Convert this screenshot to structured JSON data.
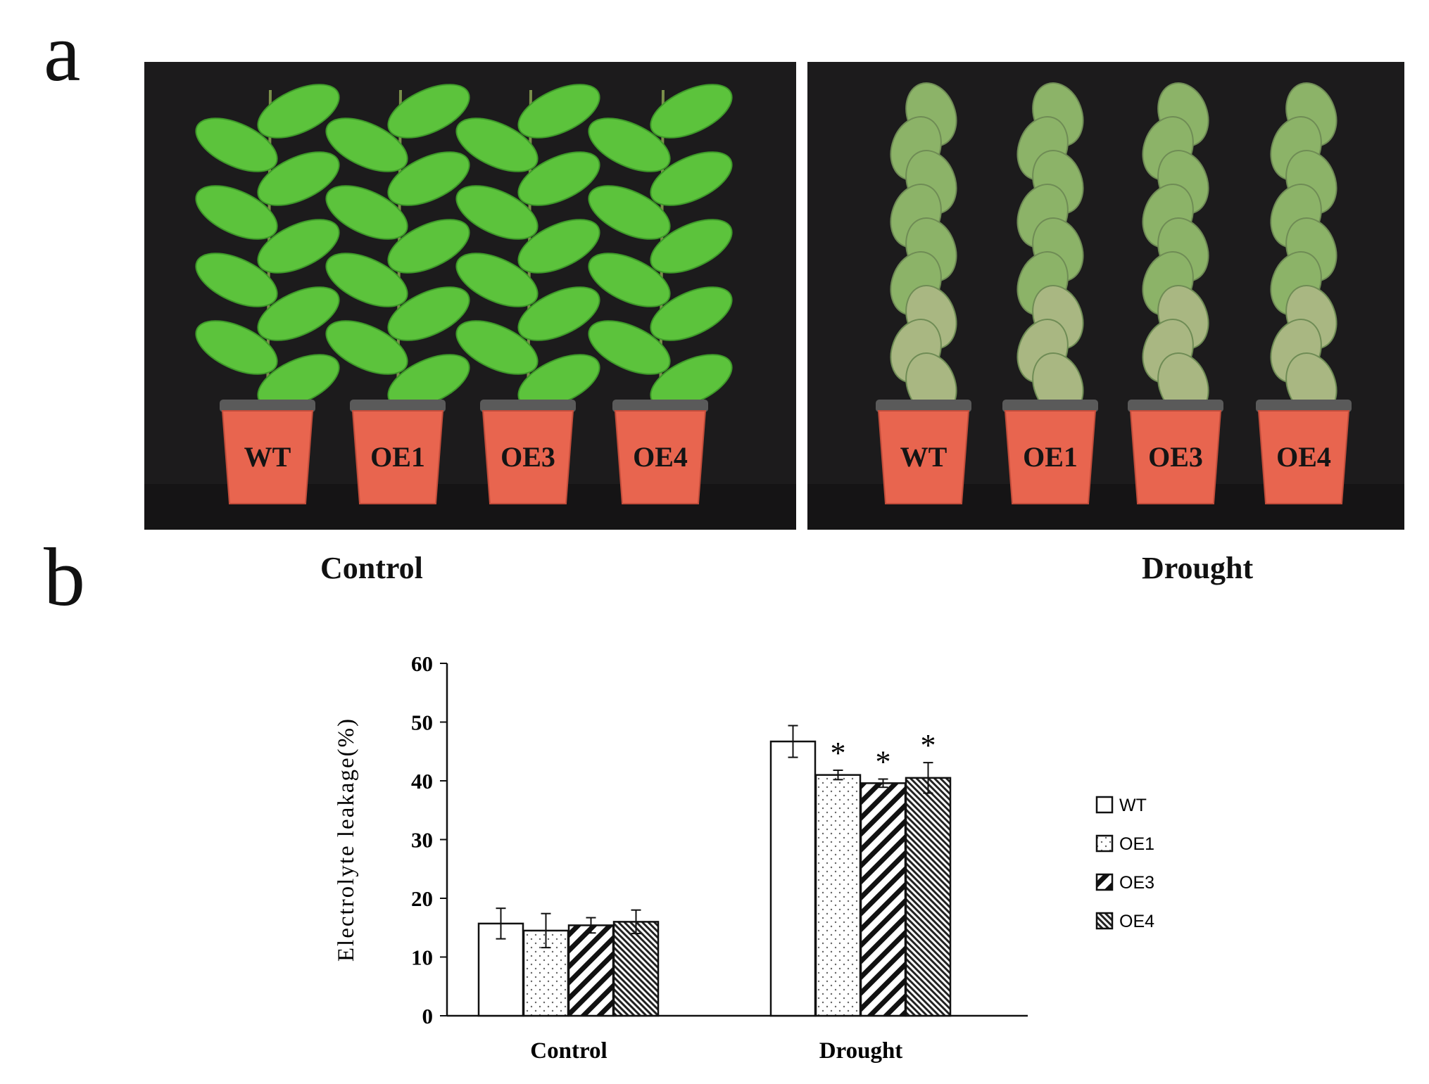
{
  "panels": {
    "a": "a",
    "b": "b"
  },
  "photo": {
    "control": {
      "pots": [
        "WT",
        "OE1",
        "OE3",
        "OE4"
      ],
      "caption": "Control"
    },
    "drought": {
      "pots": [
        "WT",
        "OE1",
        "OE3",
        "OE4"
      ],
      "caption": "Drought"
    }
  },
  "colors": {
    "background": "#1c1b1c",
    "pot": "#e8654f",
    "leaf_control": "#5cc33c",
    "leaf_drought": "#8cb368"
  },
  "chart_data": {
    "type": "bar",
    "categories": [
      "Control",
      "Drought"
    ],
    "ylabel": "Electrolyte leakage(%)",
    "ylim": [
      0,
      60
    ],
    "yticks": [
      0,
      10,
      20,
      30,
      40,
      50,
      60
    ],
    "legend_position": "right",
    "series": [
      {
        "name": "WT",
        "pattern": "plain",
        "values": [
          15.7,
          46.7
        ],
        "errors": [
          2.6,
          2.7
        ],
        "significance": [
          "",
          ""
        ]
      },
      {
        "name": "OE1",
        "pattern": "dots",
        "values": [
          14.5,
          41.0
        ],
        "errors": [
          2.9,
          0.8
        ],
        "significance": [
          "",
          "*"
        ]
      },
      {
        "name": "OE3",
        "pattern": "diagonal",
        "values": [
          15.4,
          39.6
        ],
        "errors": [
          1.3,
          0.7
        ],
        "significance": [
          "",
          "*"
        ]
      },
      {
        "name": "OE4",
        "pattern": "hatch",
        "values": [
          16.0,
          40.5
        ],
        "errors": [
          2.0,
          2.6
        ],
        "significance": [
          "",
          "*"
        ]
      }
    ]
  }
}
